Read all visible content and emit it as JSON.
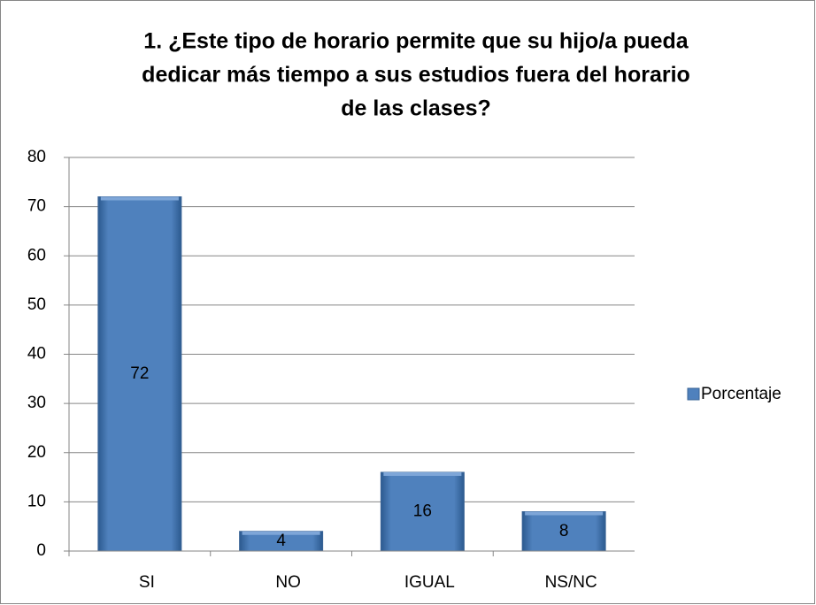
{
  "chart_data": {
    "type": "bar",
    "title": [
      "1. ¿Este tipo de horario permite que su hijo/a pueda",
      "dedicar más tiempo a sus estudios fuera del horario",
      "de las clases?"
    ],
    "categories": [
      "SI",
      "NO",
      "IGUAL",
      "NS/NC"
    ],
    "series": [
      {
        "name": "Porcentaje",
        "color": "#4f81bd",
        "values": [
          72,
          4,
          16,
          8
        ]
      }
    ],
    "ylim": [
      0,
      80
    ],
    "yticks": [
      0,
      10,
      20,
      30,
      40,
      50,
      60,
      70,
      80
    ],
    "grid": true,
    "legend": "right",
    "data_labels": true
  }
}
